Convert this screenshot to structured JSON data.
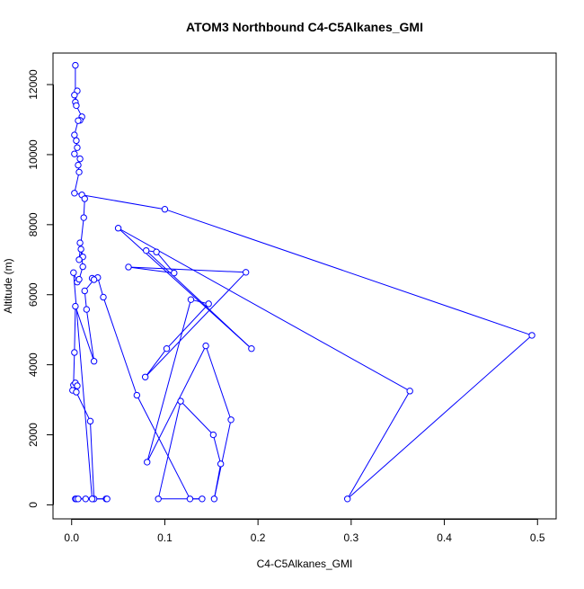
{
  "chart_data": {
    "type": "line",
    "title": "ATOM3 Northbound C4-C5Alkanes_GMI",
    "xlabel": "C4-C5Alkanes_GMI",
    "ylabel": "Altitude (m)",
    "xlim": [
      -0.02,
      0.52
    ],
    "ylim": [
      -400,
      12900
    ],
    "x_ticks": [
      0.0,
      0.1,
      0.2,
      0.3,
      0.4,
      0.5
    ],
    "x_tick_labels": [
      "0.0",
      "0.1",
      "0.2",
      "0.3",
      "0.4",
      "0.5"
    ],
    "y_ticks": [
      0,
      2000,
      4000,
      6000,
      8000,
      10000,
      12000
    ],
    "y_tick_labels": [
      "0",
      "2000",
      "4000",
      "6000",
      "8000",
      "10000",
      "12000"
    ],
    "grid": false,
    "series": [
      {
        "color": "#0000FF",
        "marker": "open-circle",
        "points": [
          [
            0.004,
            12550
          ],
          [
            0.004,
            11500
          ],
          [
            0.006,
            11820
          ],
          [
            0.003,
            11700
          ],
          [
            0.005,
            11400
          ],
          [
            0.011,
            11080
          ],
          [
            0.009,
            10980
          ],
          [
            0.007,
            10970
          ],
          [
            0.003,
            10560
          ],
          [
            0.005,
            10400
          ],
          [
            0.006,
            10200
          ],
          [
            0.003,
            10020
          ],
          [
            0.009,
            9880
          ],
          [
            0.007,
            9700
          ],
          [
            0.008,
            9500
          ],
          [
            0.003,
            8900
          ],
          [
            0.011,
            8850
          ],
          [
            0.1,
            8440
          ],
          [
            0.494,
            4840
          ],
          [
            0.296,
            170
          ],
          [
            0.363,
            3250
          ],
          [
            0.05,
            7900
          ],
          [
            0.193,
            4460
          ],
          [
            0.08,
            7260
          ],
          [
            0.091,
            7220
          ],
          [
            0.11,
            6620
          ],
          [
            0.061,
            6790
          ],
          [
            0.187,
            6640
          ],
          [
            0.079,
            3650
          ],
          [
            0.102,
            4460
          ],
          [
            0.147,
            5740
          ],
          [
            0.128,
            5860
          ],
          [
            0.081,
            1220
          ],
          [
            0.144,
            4540
          ],
          [
            0.171,
            2430
          ],
          [
            0.153,
            170
          ],
          [
            0.16,
            1170
          ],
          [
            0.152,
            2000
          ],
          [
            0.117,
            2960
          ],
          [
            0.093,
            170
          ],
          [
            0.14,
            170
          ],
          [
            0.127,
            170
          ],
          [
            0.07,
            3130
          ],
          [
            0.034,
            5930
          ],
          [
            0.028,
            6490
          ],
          [
            0.022,
            6470
          ],
          [
            0.024,
            6430
          ],
          [
            0.014,
            6110
          ],
          [
            0.016,
            5580
          ],
          [
            0.024,
            4100
          ],
          [
            0.004,
            5670
          ],
          [
            0.003,
            4350
          ],
          [
            0.002,
            3420
          ],
          [
            0.004,
            3480
          ],
          [
            0.001,
            3270
          ],
          [
            0.006,
            3400
          ],
          [
            0.005,
            3220
          ],
          [
            0.02,
            2390
          ],
          [
            0.024,
            170
          ],
          [
            0.037,
            170
          ],
          [
            0.038,
            170
          ],
          [
            0.015,
            170
          ],
          [
            0.004,
            170
          ],
          [
            0.005,
            170
          ],
          [
            0.007,
            170
          ],
          [
            0.022,
            170
          ],
          [
            0.002,
            6630
          ],
          [
            0.006,
            6360
          ],
          [
            0.008,
            6440
          ],
          [
            0.012,
            6800
          ],
          [
            0.01,
            7300
          ],
          [
            0.009,
            7480
          ],
          [
            0.012,
            7080
          ],
          [
            0.008,
            7000
          ],
          [
            0.013,
            8200
          ],
          [
            0.014,
            8740
          ]
        ]
      }
    ]
  }
}
